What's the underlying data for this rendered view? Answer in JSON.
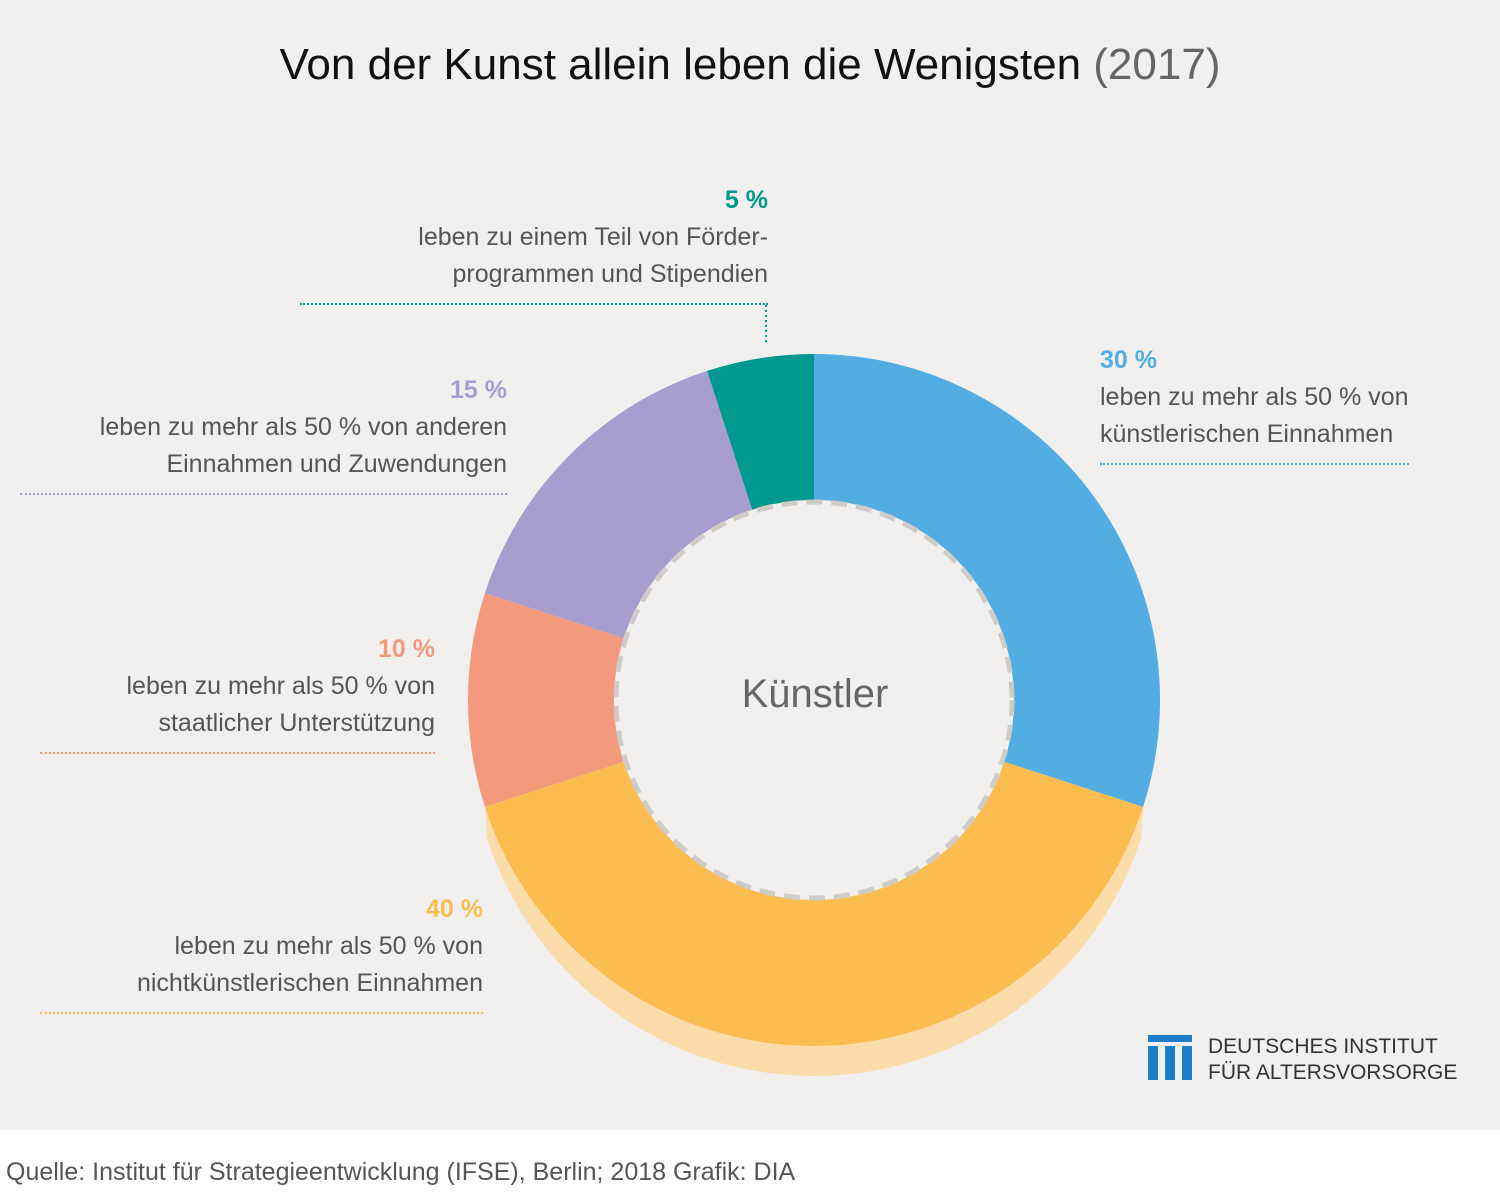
{
  "title": {
    "main": "Von der Kunst allein leben die Wenigsten",
    "year": "(2017)"
  },
  "chart_data": {
    "type": "pie",
    "variant": "donut",
    "center_label": "Künstler",
    "slices": [
      {
        "value": 30,
        "pct_label": "30 %",
        "label": "leben zu mehr als 50 % von\nkünstlerischen Einnahmen",
        "color": "#52ade2"
      },
      {
        "value": 40,
        "pct_label": "40 %",
        "label": "leben zu mehr als 50 % von\nnichtkünstlerischen Einnahmen",
        "color": "#fbbd50"
      },
      {
        "value": 10,
        "pct_label": "10 %",
        "label": "leben zu mehr als 50 % von\nstaatlicher Unterstützung",
        "color": "#f49a7c"
      },
      {
        "value": 15,
        "pct_label": "15 %",
        "label": "leben zu mehr als 50 % von anderen\nEinnahmen und Zuwendungen",
        "color": "#a79dce"
      },
      {
        "value": 5,
        "pct_label": "5 %",
        "label": "leben zu einem Teil von Förder-\nprogrammen und Stipendien",
        "color": "#009990"
      }
    ]
  },
  "logo": {
    "text": "DEUTSCHES INSTITUT\nFÜR ALTERSVORSORGE",
    "color": "#1a7fc8"
  },
  "footer": "Quelle: Institut für Strategieentwicklung (IFSE), Berlin; 2018  Grafik: DIA"
}
